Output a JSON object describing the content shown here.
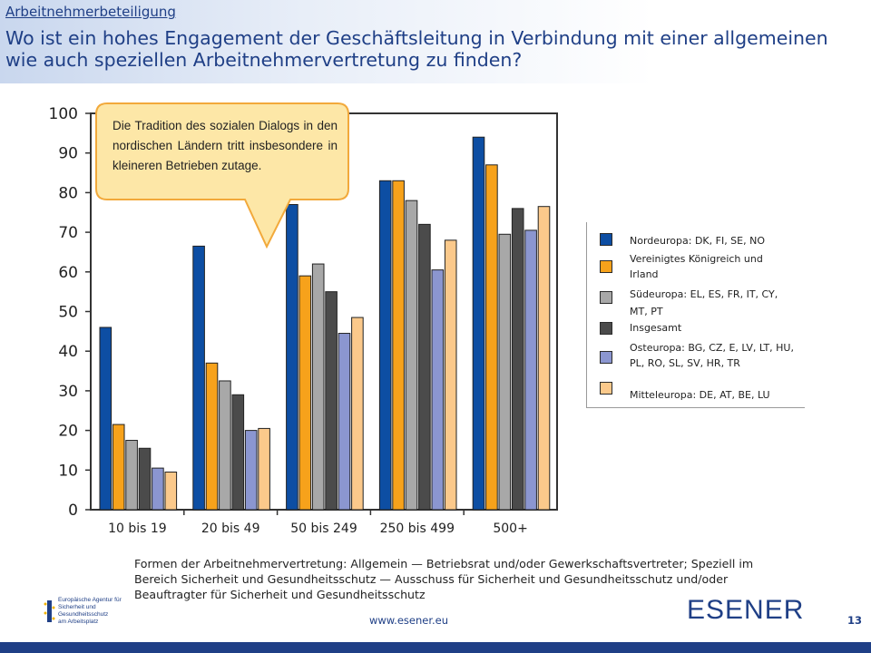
{
  "header": {
    "section": "Arbeitnehmerbeteiligung",
    "title": "Wo ist ein hohes Engagement der Geschäftsleitung in Verbindung mit einer allgemeinen wie auch speziellen Arbeitnehmervertretung zu finden?"
  },
  "callout": {
    "text": "Die Tradition des sozialen Dialogs in den nordischen Ländern tritt insbesondere in kleineren Betrieben zutage."
  },
  "footnote": "Formen der Arbeitnehmervertretung: Allgemein — Betriebsrat und/oder Gewerkschaftsvertreter; Speziell im Bereich Sicherheit und Gesundheitsschutz — Ausschuss für Sicherheit und Gesundheitsschutz und/oder Beauftragter für Sicherheit und Gesundheitsschutz",
  "footer": {
    "eu_agency": [
      "Europäische Agentur für",
      "Sicherheit und Gesundheitsschutz",
      "am Arbeitsplatz"
    ],
    "website": "www.esener.eu",
    "logo": "ESENER",
    "page": "13"
  },
  "chart_data": {
    "type": "bar",
    "categories": [
      "10 bis 19",
      "20 bis 49",
      "50 bis 249",
      "250 bis 499",
      "500+"
    ],
    "ylim": [
      0,
      100
    ],
    "yticks": [
      "0",
      "10",
      "20",
      "30",
      "40",
      "50",
      "60",
      "70",
      "80",
      "90",
      "100"
    ],
    "grid": false,
    "legend_position": "right",
    "series": [
      {
        "name": "Nordeuropa: DK, FI, SE, NO",
        "color": "#0d4ea3",
        "values": [
          46,
          66.5,
          77,
          83,
          94
        ]
      },
      {
        "name": "Vereinigtes Königreich und Irland",
        "color": "#f7a21b",
        "values": [
          21.5,
          37,
          59,
          83,
          87
        ]
      },
      {
        "name": "Südeuropa: EL, ES, FR, IT, CY, MT, PT",
        "color": "#a8a8a8",
        "values": [
          17.5,
          32.5,
          62,
          78,
          69.5
        ]
      },
      {
        "name": "Insgesamt",
        "color": "#4b4b4b",
        "values": [
          15.5,
          29,
          55,
          72,
          76
        ]
      },
      {
        "name": "Osteuropa: BG, CZ, E, LV, LT, HU, PL, RO, SL, SV, HR, TR",
        "color": "#8b96d0",
        "values": [
          10.5,
          20,
          44.5,
          60.5,
          70.5
        ]
      },
      {
        "name": "Mitteleuropa: DE, AT, BE, LU",
        "color": "#fbc98b",
        "values": [
          9.5,
          20.5,
          48.5,
          68,
          76.5
        ]
      }
    ]
  }
}
